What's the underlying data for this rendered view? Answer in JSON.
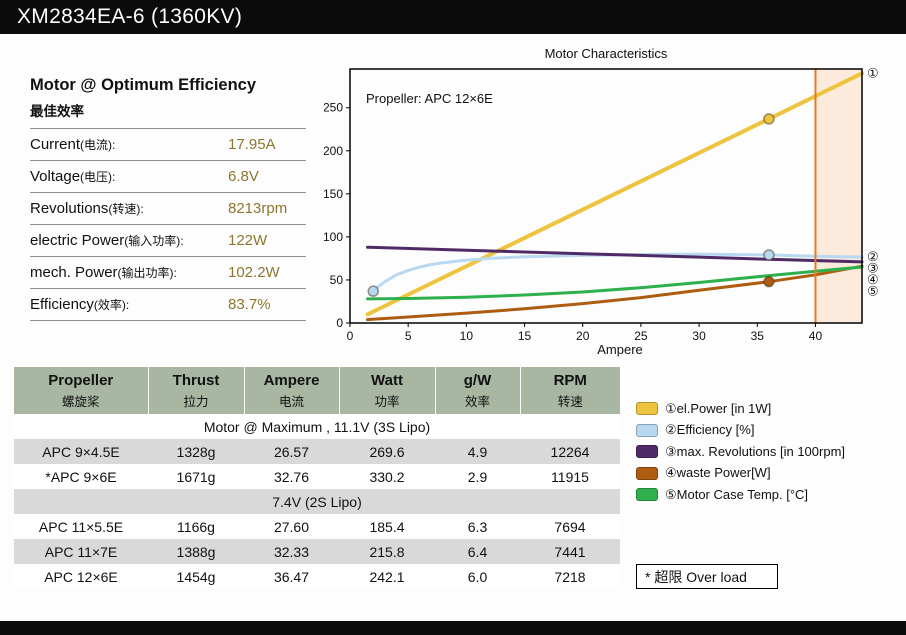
{
  "title_bar": {
    "title": "XM2834EA-6 (1360KV)"
  },
  "colors": {
    "header_bg": "#a9b6a2",
    "row_alt": "#d9d9d9",
    "accent_value": "#8c762f"
  },
  "optimum": {
    "heading_en": "Motor @ Optimum Efficiency",
    "heading_zh": "最佳效率",
    "rows": [
      {
        "label_en": "Current",
        "label_zh": "(电流):",
        "value": "17.95A"
      },
      {
        "label_en": "Voltage",
        "label_zh": "(电压):",
        "value": "6.8V"
      },
      {
        "label_en": "Revolutions",
        "label_zh": "(转速):",
        "value": "8213rpm"
      },
      {
        "label_en": "electric Power",
        "label_zh": "(输入功率):",
        "value": "122W"
      },
      {
        "label_en": "mech. Power",
        "label_zh": "(输出功率):",
        "value": "102.2W"
      },
      {
        "label_en": "Efficiency",
        "label_zh": "(效率):",
        "value": "83.7%"
      }
    ]
  },
  "chart_data": {
    "type": "line",
    "title": "Motor Characteristics",
    "annotation": "Propeller:  APC 12×6E",
    "xlabel": "Ampere",
    "x_ticks": [
      0,
      5,
      10,
      15,
      20,
      25,
      30,
      35,
      40
    ],
    "y_ticks": [
      0,
      50,
      100,
      150,
      200,
      250
    ],
    "x_max": 44,
    "y_max": 295,
    "overload_from": 40,
    "overload_line_color": "#e87a22",
    "overload_fill": "#fcebdd",
    "series": [
      {
        "name": "el.Power [in 1W]",
        "glyph": "①",
        "color": "#edc33f",
        "width": 4,
        "points": [
          [
            1.5,
            10
          ],
          [
            36,
            237
          ],
          [
            44,
            290
          ]
        ]
      },
      {
        "name": "Efficiency [%]",
        "glyph": "②",
        "color": "#b9d8f2",
        "width": 3,
        "points": [
          [
            1.7,
            33
          ],
          [
            2.2,
            40
          ],
          [
            3,
            48
          ],
          [
            4,
            56
          ],
          [
            5,
            61
          ],
          [
            6,
            65
          ],
          [
            7,
            68
          ],
          [
            8,
            70
          ],
          [
            10,
            73
          ],
          [
            12,
            75
          ],
          [
            15,
            77
          ],
          [
            20,
            78.5
          ],
          [
            25,
            79.5
          ],
          [
            30,
            80
          ],
          [
            36,
            79
          ],
          [
            40,
            77.5
          ],
          [
            44,
            76.5
          ]
        ]
      },
      {
        "name": "max. Revolutions [in 100rpm]",
        "glyph": "③",
        "color": "#502a66",
        "width": 3,
        "points": [
          [
            1.5,
            88
          ],
          [
            10,
            84.5
          ],
          [
            20,
            80.5
          ],
          [
            30,
            76.5
          ],
          [
            36,
            74
          ],
          [
            44,
            71
          ]
        ]
      },
      {
        "name": "waste Power[W]",
        "glyph": "④",
        "color": "#ad5c10",
        "width": 3,
        "points": [
          [
            1.5,
            4
          ],
          [
            5,
            7
          ],
          [
            10,
            11.5
          ],
          [
            15,
            16.5
          ],
          [
            20,
            22.5
          ],
          [
            25,
            29.5
          ],
          [
            30,
            38
          ],
          [
            36,
            48
          ],
          [
            40,
            56
          ],
          [
            44,
            66
          ]
        ]
      },
      {
        "name": "Motor Case Temp. [°C]",
        "glyph": "⑤",
        "color": "#2eb14c",
        "width": 3,
        "points": [
          [
            1.5,
            28
          ],
          [
            5,
            28.5
          ],
          [
            10,
            30
          ],
          [
            15,
            32.5
          ],
          [
            20,
            36
          ],
          [
            25,
            41
          ],
          [
            30,
            47
          ],
          [
            36,
            55
          ],
          [
            40,
            60
          ],
          [
            44,
            65
          ]
        ]
      }
    ],
    "markers": [
      {
        "x": 36,
        "y": 237,
        "color": "#edc33f"
      },
      {
        "x": 36,
        "y": 79,
        "color": "#b9d8f2"
      },
      {
        "x": 36,
        "y": 48,
        "color": "#ad5c10"
      },
      {
        "x": 2,
        "y": 37,
        "color": "#b9d8f2"
      }
    ]
  },
  "table": {
    "headers": [
      {
        "en": "Propeller",
        "zh": "螺旋桨"
      },
      {
        "en": "Thrust",
        "zh": "拉力"
      },
      {
        "en": "Ampere",
        "zh": "电流"
      },
      {
        "en": "Watt",
        "zh": "功率"
      },
      {
        "en": "g/W",
        "zh": "效率"
      },
      {
        "en": "RPM",
        "zh": "转速"
      }
    ],
    "rows": [
      {
        "type": "section",
        "label": "Motor @ Maximum , 11.1V (3S Lipo)"
      },
      {
        "type": "data",
        "cells": [
          "APC 9×4.5E",
          "1328g",
          "26.57",
          "269.6",
          "4.9",
          "12264"
        ]
      },
      {
        "type": "data",
        "cells": [
          "*APC 9×6E",
          "1671g",
          "32.76",
          "330.2",
          "2.9",
          "11915"
        ]
      },
      {
        "type": "section",
        "label": "7.4V (2S Lipo)"
      },
      {
        "type": "data",
        "cells": [
          "APC 11×5.5E",
          "1166g",
          "27.60",
          "185.4",
          "6.3",
          "7694"
        ]
      },
      {
        "type": "data",
        "cells": [
          "APC 11×7E",
          "1388g",
          "32.33",
          "215.8",
          "6.4",
          "7441"
        ]
      },
      {
        "type": "data",
        "cells": [
          "APC 12×6E",
          "1454g",
          "36.47",
          "242.1",
          "6.0",
          "7218"
        ]
      }
    ]
  },
  "legend": {
    "items": [
      {
        "glyph": "①",
        "label": "el.Power [in 1W]",
        "color": "#edc33f"
      },
      {
        "glyph": "②",
        "label": "Efficiency [%]",
        "color": "#b9d8f2"
      },
      {
        "glyph": "③",
        "label": "max. Revolutions [in 100rpm]",
        "color": "#502a66"
      },
      {
        "glyph": "④",
        "label": "waste Power[W]",
        "color": "#ad5c10"
      },
      {
        "glyph": "⑤",
        "label": "Motor Case Temp. [°C]",
        "color": "#2eb14c"
      }
    ]
  },
  "overload_note": "* 超限 Over load"
}
